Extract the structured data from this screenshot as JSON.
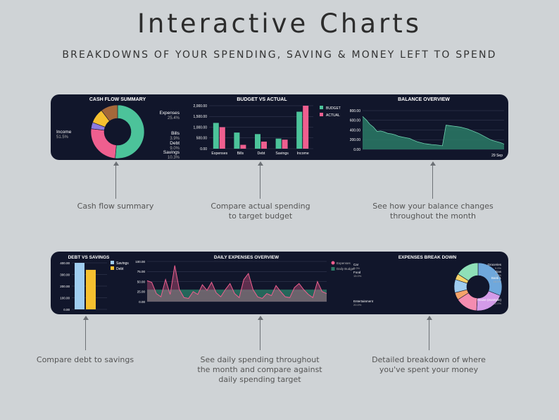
{
  "header": {
    "title": "Interactive Charts",
    "subtitle": "BREAKDOWNS OF YOUR SPENDING, SAVING & MONEY LEFT TO SPEND"
  },
  "captions": {
    "cash_flow": "Cash flow summary",
    "budget_line1": "Compare actual spending",
    "budget_line2": "to  target budget",
    "balance_line1": "See how your balance changes",
    "balance_line2": "throughout the month",
    "debt": "Compare debt to savings",
    "daily_line1": "See daily spending throughout",
    "daily_line2": "the month and compare against",
    "daily_line3": "daily spending target",
    "breakdown_line1": "Detailed breakdown of where",
    "breakdown_line2": "you've spent your money"
  },
  "chart_data": [
    {
      "type": "pie",
      "title": "CASH FLOW SUMMARY",
      "labels": [
        "Income",
        "Expenses",
        "Bills",
        "Debt",
        "Savings"
      ],
      "values": [
        51.5,
        25.4,
        3.9,
        9.0,
        10.3
      ],
      "percent_labels": [
        "51.5%",
        "25.4%",
        "3.9%",
        "9.0%",
        "10.3%"
      ],
      "colors": [
        "#4cc39a",
        "#ef5f8f",
        "#8c7be0",
        "#f6c02f",
        "#a5683a"
      ]
    },
    {
      "type": "bar",
      "title": "BUDGET VS ACTUAL",
      "categories": [
        "Expenses",
        "Bills",
        "Debt",
        "Savings",
        "Income"
      ],
      "series": [
        {
          "name": "BUDGET",
          "values": [
            1200,
            750,
            680,
            470,
            1720
          ],
          "color": "#4cc39a"
        },
        {
          "name": "ACTUAL",
          "values": [
            1000,
            180,
            330,
            420,
            2000
          ],
          "color": "#ef5f8f"
        }
      ],
      "ytick_labels": [
        "0.00",
        "500.00",
        "1,000.00",
        "1,500.00",
        "2,000.00"
      ],
      "ylim": [
        0,
        2000
      ]
    },
    {
      "type": "area",
      "title": "BALANCE OVERVIEW",
      "y": [
        680,
        610,
        520,
        460,
        370,
        380,
        360,
        330,
        320,
        300,
        270,
        255,
        240,
        225,
        190,
        160,
        140,
        120,
        110,
        100,
        95,
        85,
        75,
        500,
        490,
        480,
        470,
        460,
        440,
        420,
        390,
        360,
        330,
        290,
        250,
        210,
        180,
        160,
        140,
        110
      ],
      "ytick_labels": [
        "0.00",
        "200.00",
        "400.00",
        "600.00",
        "800.00"
      ],
      "ylim": [
        0,
        800
      ],
      "last_xtick_label": "29 Sep",
      "color": "#2a7a66"
    },
    {
      "type": "bar",
      "title": "DEBT VS SAVINGS",
      "series": [
        {
          "name": "Savings",
          "values": [
            400
          ],
          "color": "#9fcdf0"
        },
        {
          "name": "Debt",
          "values": [
            340
          ],
          "color": "#f6c02f"
        }
      ],
      "ytick_labels": [
        "0.00",
        "100.00",
        "200.00",
        "300.00",
        "400.00"
      ],
      "ylim": [
        0,
        400
      ]
    },
    {
      "type": "area",
      "title": "DAILY EXPENSES OVERVIEW",
      "series": [
        {
          "name": "Expenses",
          "values": [
            52,
            48,
            20,
            12,
            55,
            18,
            90,
            30,
            10,
            8,
            25,
            18,
            42,
            28,
            48,
            22,
            12,
            30,
            45,
            20,
            10,
            55,
            70,
            30,
            12,
            8,
            20,
            15,
            40,
            25,
            12,
            10,
            35,
            45,
            30,
            18,
            10,
            50,
            25,
            20
          ],
          "color": "#ef5f8f"
        },
        {
          "name": "Daily Budget",
          "values": [
            30,
            30,
            30,
            30,
            30,
            30,
            30,
            30,
            30,
            30,
            30,
            30,
            30,
            30,
            30,
            30,
            30,
            30,
            30,
            30,
            30,
            30,
            30,
            30,
            30,
            30,
            30,
            30,
            30,
            30,
            30,
            30,
            30,
            30,
            30,
            30,
            30,
            30,
            30,
            30
          ],
          "color": "#2a7a66"
        }
      ],
      "ytick_labels": [
        "0.00",
        "25.00",
        "50.00",
        "75.00",
        "100.00"
      ],
      "ylim": [
        0,
        100
      ]
    },
    {
      "type": "pie",
      "title": "EXPENSES BREAK DOWN",
      "labels": [
        "House (example)",
        "Entertainment",
        "Food",
        "Car",
        "Groceries",
        "Gas",
        "Bank 1"
      ],
      "values": [
        31.0,
        20.0,
        15.0,
        5.0,
        9.0,
        4.0,
        16.0
      ],
      "percent_labels": [
        "31.0%",
        "20.0%",
        "15.0%",
        "5.0%",
        "9.0%",
        "4.0%",
        "16.0%"
      ],
      "colors": [
        "#6fa8dc",
        "#d39be8",
        "#f48cb0",
        "#f6a36a",
        "#9fcdf0",
        "#f6d36a",
        "#8fe0b8"
      ]
    }
  ]
}
